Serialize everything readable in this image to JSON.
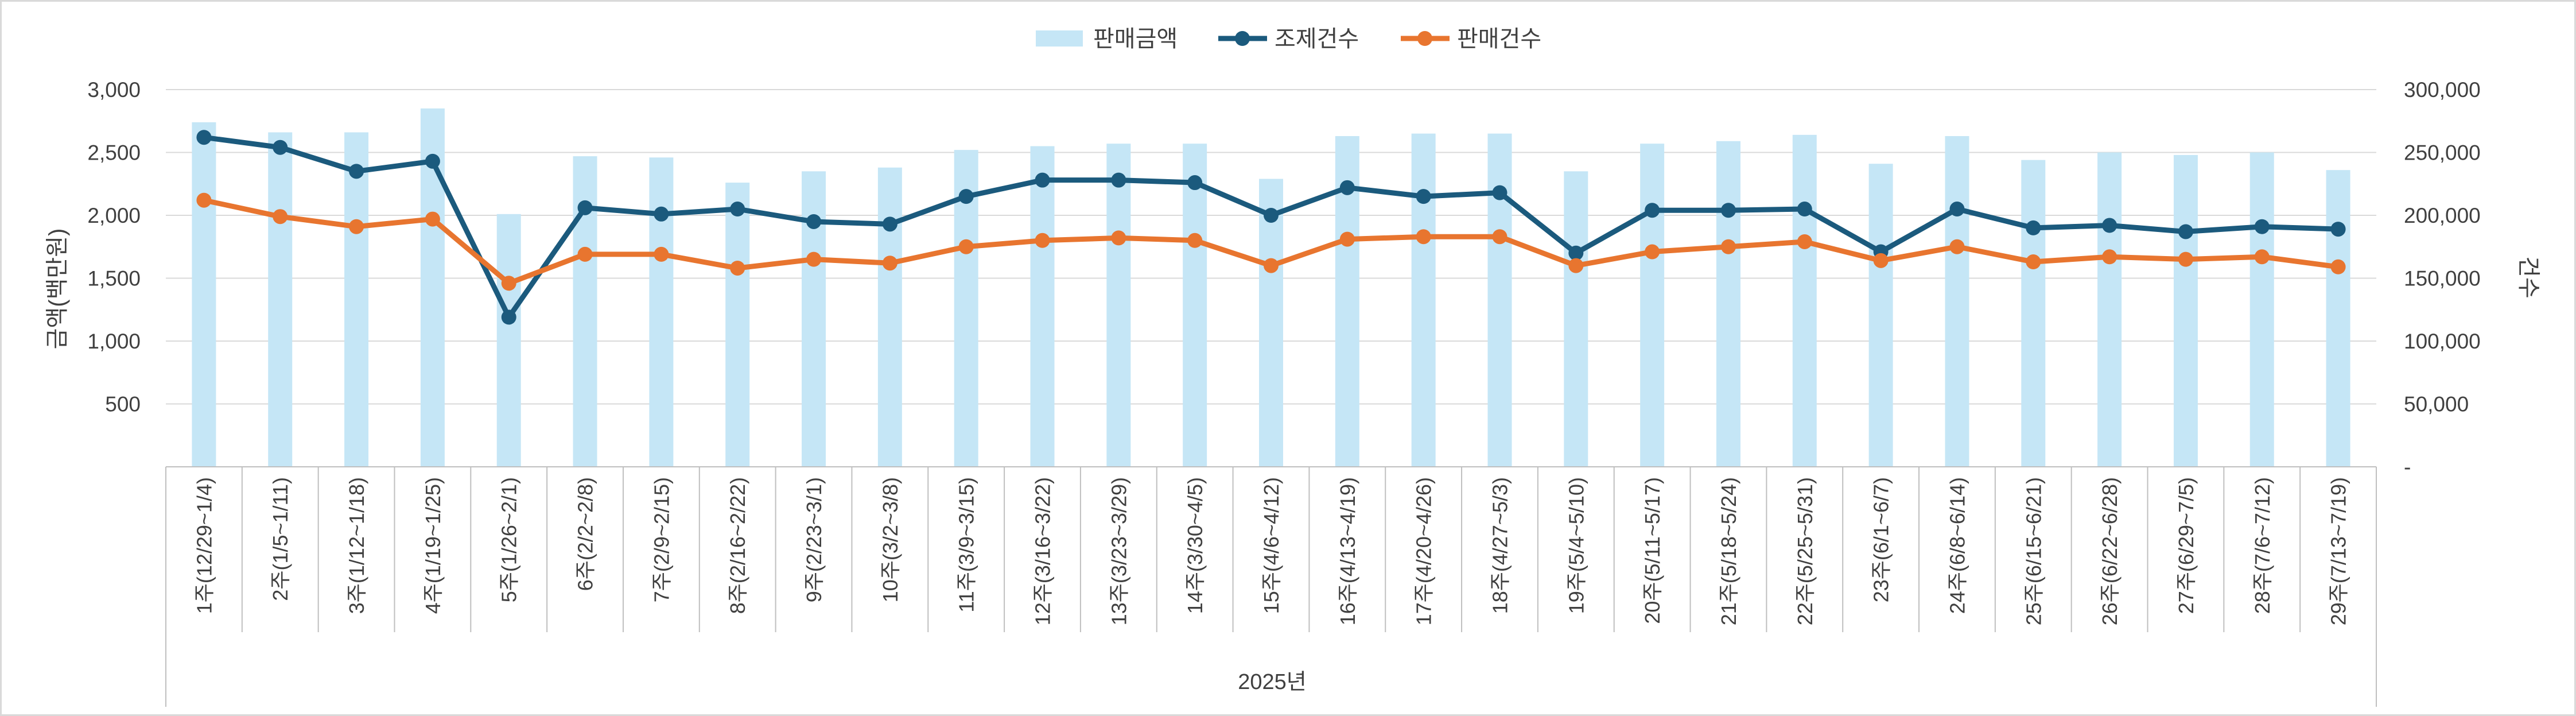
{
  "chart_data": {
    "type": "bar",
    "xlabel": "2025년",
    "ylabel": "금액(백만원)",
    "y2label": "건수",
    "ylim": [
      0,
      3000
    ],
    "y2lim": [
      0,
      300000
    ],
    "yticks": [
      "500",
      "1,000",
      "1,500",
      "2,000",
      "2,500",
      "3,000"
    ],
    "y2ticks": [
      "-",
      "50,000",
      "100,000",
      "150,000",
      "200,000",
      "250,000",
      "300,000"
    ],
    "legend_position": "top-center",
    "grid": true,
    "categories": [
      "1주(12/29~1/4)",
      "2주(1/5~1/11)",
      "3주(1/12~1/18)",
      "4주(1/19~1/25)",
      "5주(1/26~2/1)",
      "6주(2/2~2/8)",
      "7주(2/9~2/15)",
      "8주(2/16~2/22)",
      "9주(2/23~3/1)",
      "10주(3/2~3/8)",
      "11주(3/9~3/15)",
      "12주(3/16~3/22)",
      "13주(3/23~3/29)",
      "14주(3/30~4/5)",
      "15주(4/6~4/12)",
      "16주(4/13~4/19)",
      "17주(4/20~4/26)",
      "18주(4/27~5/3)",
      "19주(5/4~5/10)",
      "20주(5/11~5/17)",
      "21주(5/18~5/24)",
      "22주(5/25~5/31)",
      "23주(6/1~6/7)",
      "24주(6/8~6/14)",
      "25주(6/15~6/21)",
      "26주(6/22~6/28)",
      "27주(6/29~7/5)",
      "28주(7/6~7/12)",
      "29주(7/13~7/19)"
    ],
    "series": [
      {
        "name": "판매금액",
        "type": "bar",
        "axis": "left",
        "color": "#c5e6f6",
        "values": [
          2740,
          2660,
          2660,
          2850,
          2010,
          2470,
          2460,
          2260,
          2350,
          2380,
          2520,
          2550,
          2570,
          2570,
          2290,
          2630,
          2650,
          2650,
          2350,
          2570,
          2590,
          2640,
          2410,
          2630,
          2440,
          2500,
          2480,
          2500,
          2360
        ]
      },
      {
        "name": "조제건수",
        "type": "line",
        "axis": "right",
        "color": "#1b5a7d",
        "values": [
          262000,
          254000,
          235000,
          243000,
          119000,
          206000,
          201000,
          205000,
          195000,
          193000,
          215000,
          228000,
          228000,
          226000,
          200000,
          222000,
          215000,
          218000,
          170000,
          204000,
          204000,
          205000,
          171000,
          205000,
          190000,
          192000,
          187000,
          191000,
          189000
        ]
      },
      {
        "name": "판매건수",
        "type": "line",
        "axis": "right",
        "color": "#e8752f",
        "values": [
          212000,
          199000,
          191000,
          197000,
          146000,
          169000,
          169000,
          158000,
          165000,
          162000,
          175000,
          180000,
          182000,
          180000,
          160000,
          181000,
          183000,
          183000,
          160000,
          171000,
          175000,
          179000,
          164000,
          175000,
          163000,
          167000,
          165000,
          167000,
          159000
        ]
      }
    ]
  }
}
